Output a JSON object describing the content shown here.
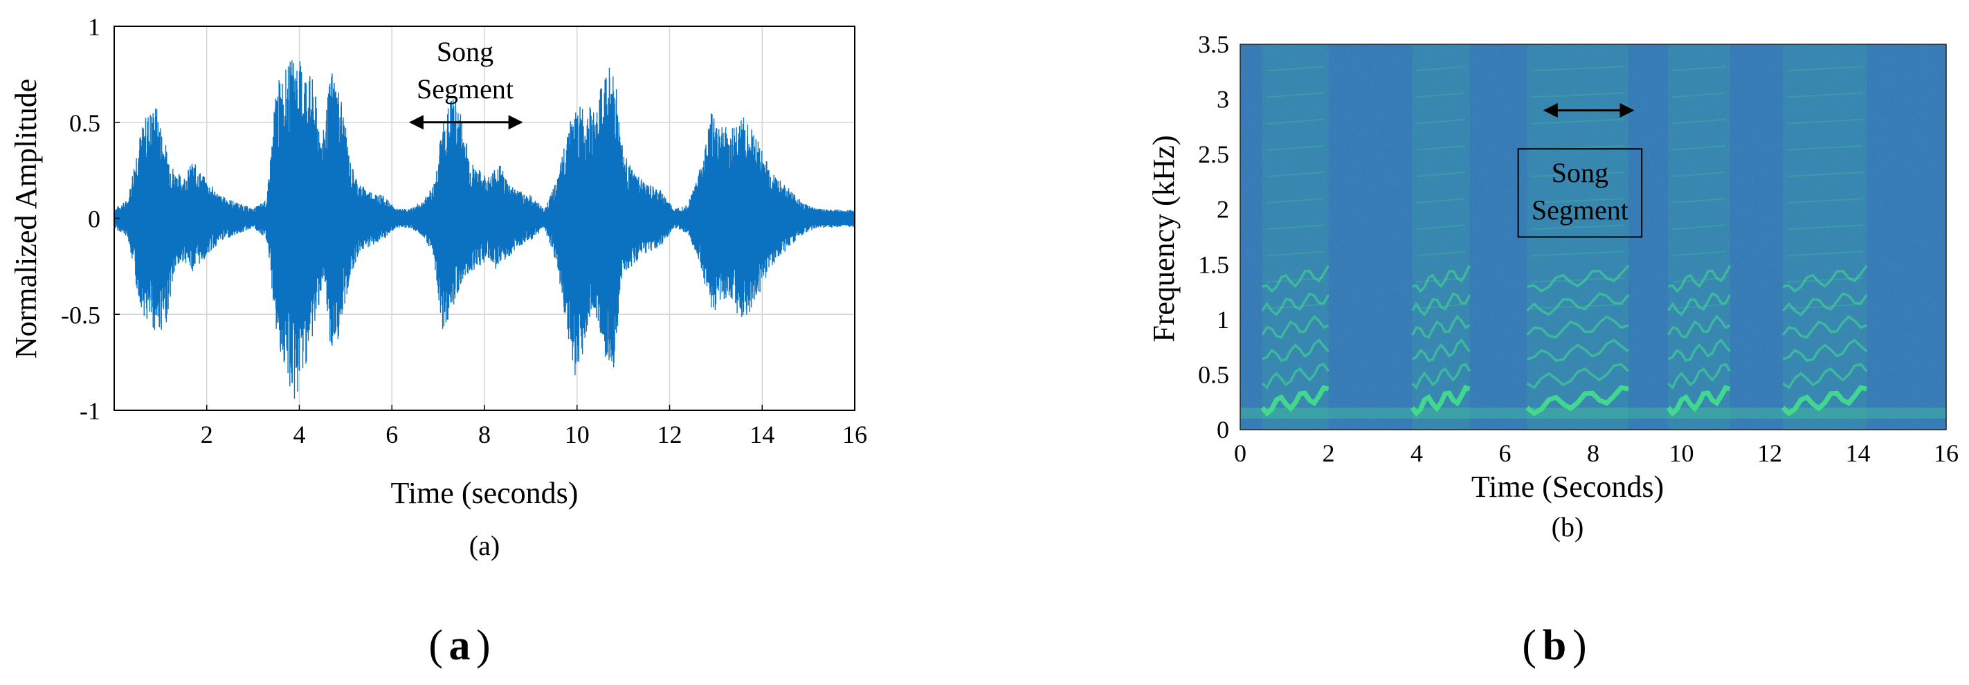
{
  "panels": {
    "a_label": "a",
    "b_label": "b"
  },
  "chart_data": [
    {
      "type": "line",
      "subtitle": "(a)",
      "xlabel": "Time (seconds)",
      "ylabel": "Normalized Amplitude",
      "xlim": [
        0,
        16
      ],
      "ylim": [
        -1,
        1
      ],
      "grid": true,
      "x_ticks": [
        2,
        4,
        6,
        8,
        10,
        12,
        14,
        16
      ],
      "y_ticks": [
        -1,
        -0.5,
        0,
        0.5,
        1
      ],
      "x_tick_labels": [
        "2",
        "4",
        "6",
        "8",
        "10",
        "12",
        "14",
        "16"
      ],
      "y_tick_labels": [
        "-1",
        "-0.5",
        "0",
        "0.5",
        "1"
      ],
      "color": "#0a72c0",
      "series": [
        {
          "envelope_time": [
            0,
            0.3,
            0.5,
            0.7,
            0.9,
            1.1,
            1.3,
            1.5,
            1.7,
            2.0,
            2.3,
            2.7,
            3.0,
            3.3,
            3.5,
            3.7,
            3.9,
            4.1,
            4.3,
            4.5,
            4.7,
            4.9,
            5.1,
            5.3,
            5.5,
            5.8,
            6.1,
            6.4,
            6.7,
            6.9,
            7.1,
            7.3,
            7.5,
            7.7,
            7.9,
            8.1,
            8.3,
            8.5,
            8.7,
            9.0,
            9.3,
            9.6,
            9.8,
            10.0,
            10.2,
            10.4,
            10.6,
            10.8,
            11.0,
            11.2,
            11.5,
            11.8,
            12.1,
            12.4,
            12.7,
            12.9,
            13.1,
            13.3,
            13.5,
            13.7,
            13.9,
            14.1,
            14.3,
            14.6,
            14.9,
            15.2,
            15.5,
            15.8,
            16.0
          ],
          "envelope_upper": [
            0.05,
            0.1,
            0.4,
            0.55,
            0.6,
            0.4,
            0.25,
            0.22,
            0.3,
            0.2,
            0.12,
            0.08,
            0.05,
            0.1,
            0.7,
            0.78,
            0.86,
            0.8,
            0.72,
            0.42,
            0.8,
            0.65,
            0.3,
            0.18,
            0.15,
            0.12,
            0.05,
            0.05,
            0.1,
            0.18,
            0.5,
            0.65,
            0.55,
            0.3,
            0.25,
            0.22,
            0.3,
            0.2,
            0.15,
            0.12,
            0.05,
            0.22,
            0.5,
            0.58,
            0.6,
            0.55,
            0.78,
            0.82,
            0.35,
            0.25,
            0.18,
            0.15,
            0.05,
            0.08,
            0.3,
            0.55,
            0.52,
            0.45,
            0.55,
            0.5,
            0.42,
            0.3,
            0.22,
            0.15,
            0.08,
            0.05,
            0.05,
            0.04,
            0.05
          ],
          "envelope_lower": [
            -0.05,
            -0.1,
            -0.4,
            -0.55,
            -0.6,
            -0.58,
            -0.3,
            -0.22,
            -0.28,
            -0.2,
            -0.12,
            -0.08,
            -0.05,
            -0.12,
            -0.6,
            -0.82,
            -0.98,
            -0.8,
            -0.62,
            -0.35,
            -0.72,
            -0.6,
            -0.3,
            -0.18,
            -0.15,
            -0.12,
            -0.05,
            -0.05,
            -0.1,
            -0.2,
            -0.6,
            -0.48,
            -0.35,
            -0.28,
            -0.25,
            -0.22,
            -0.28,
            -0.22,
            -0.15,
            -0.12,
            -0.05,
            -0.3,
            -0.65,
            -0.88,
            -0.6,
            -0.5,
            -0.72,
            -0.78,
            -0.3,
            -0.25,
            -0.18,
            -0.15,
            -0.05,
            -0.08,
            -0.28,
            -0.5,
            -0.45,
            -0.4,
            -0.52,
            -0.55,
            -0.42,
            -0.3,
            -0.22,
            -0.15,
            -0.08,
            -0.05,
            -0.05,
            -0.04,
            -0.05
          ]
        }
      ],
      "annotation": {
        "text_line1": "Song",
        "text_line2": "Segment",
        "arrow_x": [
          6.4,
          8.8
        ],
        "arrow_y": 0.5
      }
    },
    {
      "type": "heatmap",
      "subtitle": "(b)",
      "xlabel": "Time (Seconds)",
      "ylabel": "Frequency (kHz)",
      "xlim": [
        0,
        16
      ],
      "ylim": [
        0,
        3.5
      ],
      "x_ticks": [
        0,
        2,
        4,
        6,
        8,
        10,
        12,
        14,
        16
      ],
      "y_ticks": [
        0,
        0.5,
        1,
        1.5,
        2,
        2.5,
        3,
        3.5
      ],
      "x_tick_labels": [
        "0",
        "2",
        "4",
        "6",
        "8",
        "10",
        "12",
        "14",
        "16"
      ],
      "y_tick_labels": [
        "0",
        "0.5",
        "1",
        "1.5",
        "2",
        "2.5",
        "3",
        "3.5"
      ],
      "background_color": "#2a6fae",
      "highlight_color": "#44e08c",
      "active_regions": [
        [
          0.5,
          2.0
        ],
        [
          3.9,
          5.2
        ],
        [
          6.5,
          8.8
        ],
        [
          9.7,
          11.1
        ],
        [
          12.3,
          14.2
        ]
      ],
      "annotation": {
        "text_line1": "Song",
        "text_line2": "Segment",
        "arrow_x": [
          6.9,
          8.9
        ],
        "arrow_y": 3.5,
        "box_x": [
          6.3,
          9.1
        ],
        "box_y": [
          1.75,
          2.55
        ]
      }
    }
  ]
}
